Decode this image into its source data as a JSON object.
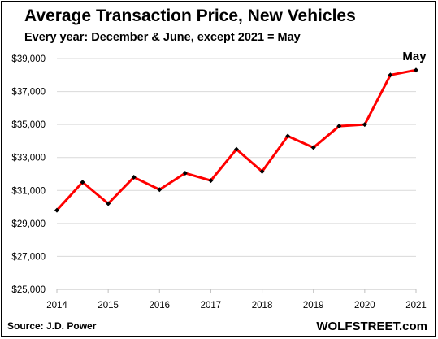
{
  "chart_data": {
    "type": "line",
    "title": "Average Transaction  Price, New Vehicles",
    "subtitle": "Every year: December & June, except 2021 = May",
    "xlabel": "",
    "ylabel": "",
    "x": [
      2014.0,
      2014.5,
      2015.0,
      2015.5,
      2016.0,
      2016.5,
      2017.0,
      2017.5,
      2018.0,
      2018.5,
      2019.0,
      2019.5,
      2020.0,
      2020.5,
      2021.0
    ],
    "series": [
      {
        "values": [
          29800,
          31500,
          30200,
          31800,
          31050,
          32050,
          31600,
          33500,
          32150,
          34300,
          33600,
          34900,
          35000,
          38000,
          38300
        ],
        "color": "#ff0000"
      }
    ],
    "xlim": [
      2014,
      2021
    ],
    "ylim": [
      25000,
      39000
    ],
    "y_ticks": [
      25000,
      27000,
      29000,
      31000,
      33000,
      35000,
      37000,
      39000
    ],
    "y_tick_labels": [
      "$25,000",
      "$27,000",
      "$29,000",
      "$31,000",
      "$33,000",
      "$35,000",
      "$37,000",
      "$39,000"
    ],
    "x_ticks": [
      2014,
      2015,
      2016,
      2017,
      2018,
      2019,
      2020,
      2021
    ],
    "x_tick_labels": [
      "2014",
      "2015",
      "2016",
      "2017",
      "2018",
      "2019",
      "2020",
      "2021"
    ],
    "grid": "horizontal",
    "legend": "none",
    "annotation": {
      "text": "May",
      "x": 2021.0,
      "y": 38300
    }
  },
  "footer": {
    "source": "Source: J.D. Power",
    "brand": "WOLFSTREET.com"
  }
}
